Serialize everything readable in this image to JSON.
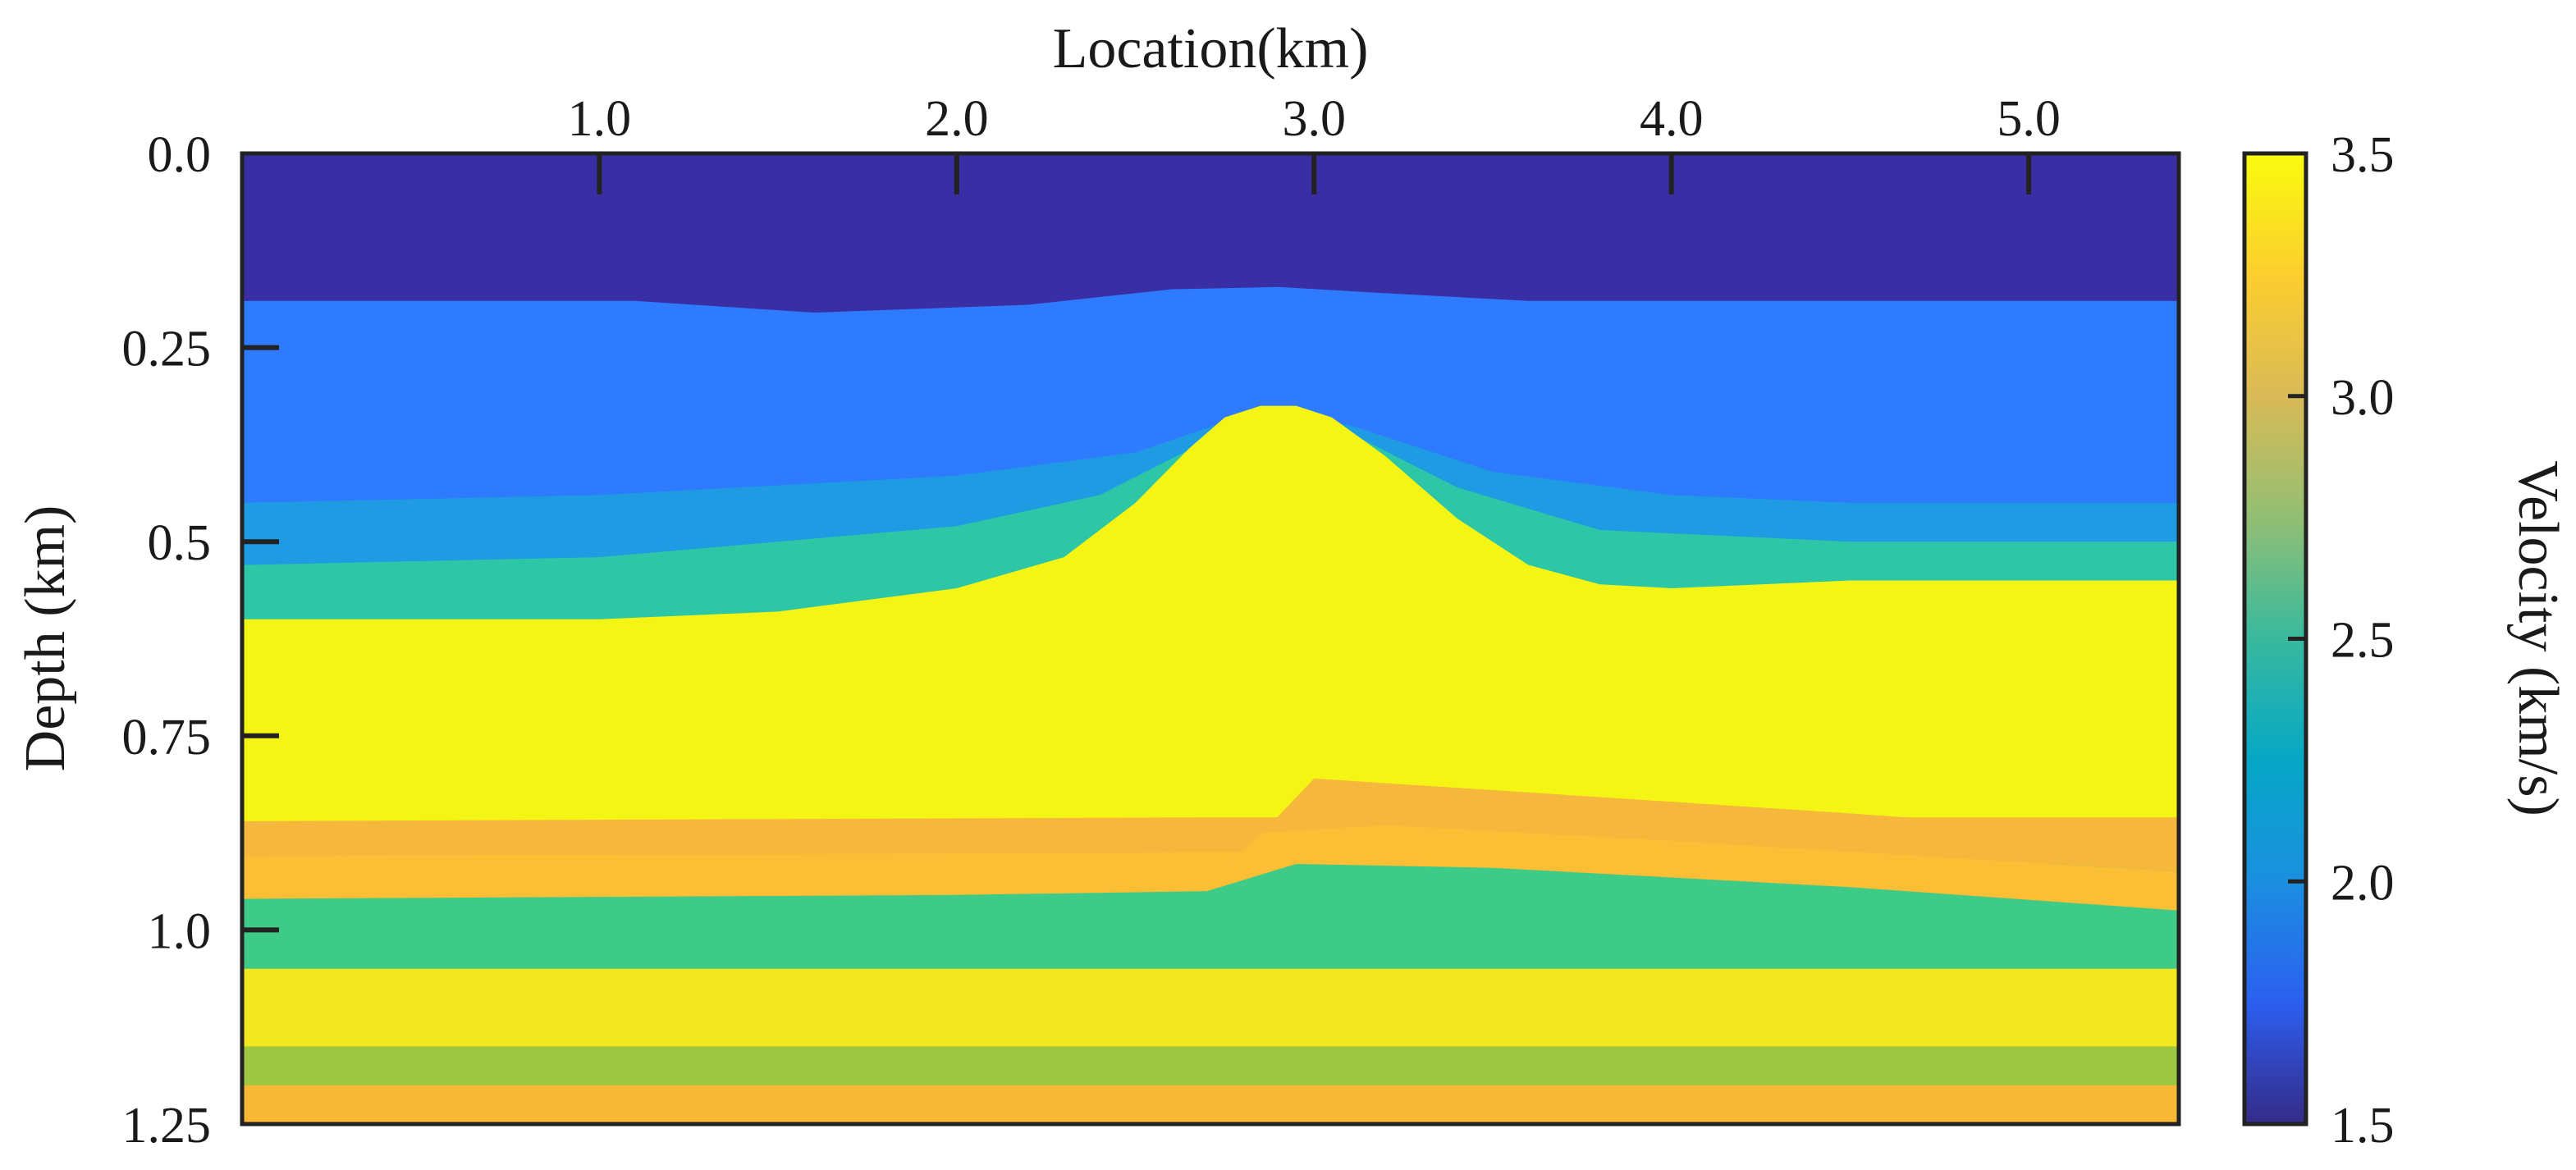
{
  "chart_data": {
    "type": "heatmap",
    "title": "",
    "xlabel": "Location(km)",
    "ylabel": "Depth (km)",
    "xlim": [
      0.0,
      5.42
    ],
    "ylim": [
      0.0,
      1.25
    ],
    "x_axis_position": "top",
    "x_ticks": [
      1.0,
      2.0,
      3.0,
      4.0,
      5.0
    ],
    "x_tick_labels": [
      "1.0",
      "2.0",
      "3.0",
      "4.0",
      "5.0"
    ],
    "y_ticks": [
      0.0,
      0.25,
      0.5,
      0.75,
      1.0,
      1.25
    ],
    "y_tick_labels": [
      "0.0",
      "0.25",
      "0.5",
      "0.75",
      "1.0",
      "1.25"
    ],
    "grid": false,
    "colorbar": {
      "label": "Velocity (km/s)",
      "range": [
        1.5,
        3.5
      ],
      "ticks": [
        1.5,
        2.0,
        2.5,
        3.0,
        3.5
      ],
      "tick_labels": [
        "1.5",
        "2.0",
        "2.5",
        "3.0",
        "3.5"
      ],
      "position": "right",
      "colormap": "parula",
      "stops": [
        "#352a87",
        "#2c5ff0",
        "#1a8fe0",
        "#06a7c6",
        "#38b99e",
        "#92bf73",
        "#d9ba56",
        "#fcce2e",
        "#f9fb0e"
      ]
    },
    "layers": [
      {
        "velocity": 1.5,
        "color": "#3a2ea4",
        "top": [
          [
            0,
            0
          ],
          [
            5.42,
            0
          ]
        ]
      },
      {
        "velocity": 2.0,
        "color": "#2f7bff",
        "top": [
          [
            0,
            0.19
          ],
          [
            1.1,
            0.19
          ],
          [
            1.6,
            0.205
          ],
          [
            2.2,
            0.195
          ],
          [
            2.6,
            0.175
          ],
          [
            2.9,
            0.172
          ],
          [
            3.2,
            0.18
          ],
          [
            3.6,
            0.19
          ],
          [
            5.42,
            0.19
          ]
        ]
      },
      {
        "velocity": 2.2,
        "color": "#1e9be3",
        "top": [
          [
            0,
            0.45
          ],
          [
            1.0,
            0.44
          ],
          [
            2.0,
            0.415
          ],
          [
            2.5,
            0.385
          ],
          [
            2.85,
            0.33
          ],
          [
            3.1,
            0.35
          ],
          [
            3.5,
            0.41
          ],
          [
            4.0,
            0.44
          ],
          [
            4.5,
            0.45
          ],
          [
            5.42,
            0.45
          ]
        ]
      },
      {
        "velocity": 2.7,
        "color": "#2dc6a6",
        "top": [
          [
            0,
            0.53
          ],
          [
            1.0,
            0.52
          ],
          [
            2.0,
            0.48
          ],
          [
            2.4,
            0.44
          ],
          [
            2.7,
            0.37
          ],
          [
            2.9,
            0.33
          ],
          [
            3.1,
            0.36
          ],
          [
            3.4,
            0.43
          ],
          [
            3.8,
            0.485
          ],
          [
            4.5,
            0.5
          ],
          [
            5.42,
            0.5
          ]
        ]
      },
      {
        "velocity": 3.5,
        "color": "#f5f515",
        "top": [
          [
            0,
            0.6
          ],
          [
            1.0,
            0.6
          ],
          [
            1.5,
            0.59
          ],
          [
            2.0,
            0.56
          ],
          [
            2.3,
            0.52
          ],
          [
            2.5,
            0.45
          ],
          [
            2.65,
            0.38
          ],
          [
            2.75,
            0.34
          ],
          [
            2.85,
            0.325
          ],
          [
            2.95,
            0.325
          ],
          [
            3.05,
            0.34
          ],
          [
            3.2,
            0.39
          ],
          [
            3.4,
            0.47
          ],
          [
            3.6,
            0.53
          ],
          [
            3.8,
            0.555
          ],
          [
            4.0,
            0.56
          ],
          [
            4.5,
            0.55
          ],
          [
            5.42,
            0.55
          ]
        ]
      },
      {
        "velocity": 3.25,
        "color": "#f5b73c",
        "top": [
          [
            0,
            0.86
          ],
          [
            2.7,
            0.855
          ],
          [
            3.0,
            0.855
          ],
          [
            5.42,
            0.855
          ]
        ]
      },
      {
        "velocity": 3.3,
        "color": "#fbbe34",
        "top": [
          [
            0,
            0.905
          ],
          [
            2.7,
            0.9
          ],
          [
            3.0,
            0.9
          ],
          [
            5.42,
            0.9
          ]
        ]
      },
      {
        "velocity": 2.75,
        "color": "#3ecb87",
        "top": [
          [
            0,
            0.96
          ],
          [
            2.0,
            0.955
          ],
          [
            2.7,
            0.95
          ],
          [
            2.8,
            0.915
          ],
          [
            2.95,
            0.915
          ],
          [
            5.42,
            0.915
          ]
        ]
      },
      {
        "velocity": 3.45,
        "color": "#f2e820",
        "top": [
          [
            0,
            1.05
          ],
          [
            5.42,
            1.05
          ]
        ]
      },
      {
        "velocity": 2.95,
        "color": "#9ec742",
        "top": [
          [
            0,
            1.15
          ],
          [
            5.42,
            1.15
          ]
        ]
      },
      {
        "velocity": 3.3,
        "color": "#f7b835",
        "top": [
          [
            0,
            1.2
          ],
          [
            5.42,
            1.2
          ]
        ]
      }
    ],
    "fault_block": {
      "velocities": [
        3.25,
        3.3
      ],
      "colors": [
        "#f5b73c",
        "#fbbe34"
      ],
      "top_left": [
        [
          2.7,
          0.95
        ],
        [
          3.0,
          0.805
        ],
        [
          3.5,
          0.82
        ],
        [
          4.5,
          0.85
        ],
        [
          5.42,
          0.88
        ]
      ],
      "split": [
        [
          2.85,
          0.875
        ],
        [
          3.2,
          0.865
        ],
        [
          4.0,
          0.885
        ],
        [
          5.42,
          0.925
        ]
      ],
      "bottom": [
        [
          2.95,
          0.915
        ],
        [
          3.5,
          0.92
        ],
        [
          4.5,
          0.945
        ],
        [
          5.42,
          0.975
        ]
      ]
    }
  }
}
